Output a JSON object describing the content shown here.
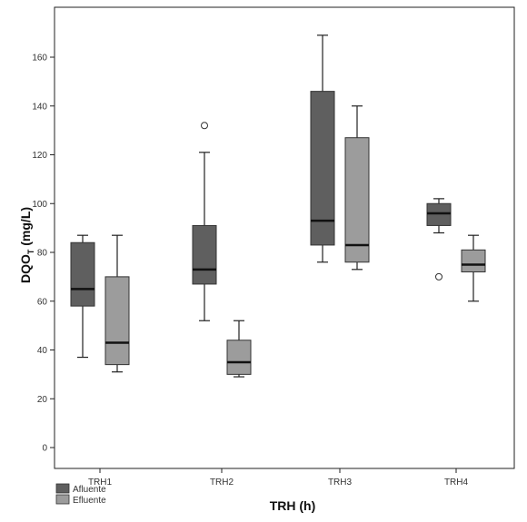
{
  "chart_data": {
    "type": "boxplot",
    "xlabel": "TRH (h)",
    "ylabel_main": "DQO",
    "ylabel_sub": "T",
    "ylabel_unit": " (mg/L)",
    "ylim": [
      -8,
      176
    ],
    "yticks": [
      0,
      20,
      40,
      60,
      80,
      100,
      120,
      140,
      160
    ],
    "grid": false,
    "legend_position": "bottom-left",
    "categories": [
      "TRH1",
      "TRH2",
      "TRH3",
      "TRH4"
    ],
    "series": [
      {
        "name": "Afluente",
        "color": "#5f5f5f",
        "boxes": [
          {
            "min": 37,
            "q1": 58,
            "median": 65,
            "q3": 84,
            "max": 87,
            "outliers": []
          },
          {
            "min": 52,
            "q1": 67,
            "median": 73,
            "q3": 91,
            "max": 121,
            "outliers": [
              132
            ]
          },
          {
            "min": 76,
            "q1": 83,
            "median": 93,
            "q3": 146,
            "max": 169,
            "outliers": []
          },
          {
            "min": 88,
            "q1": 91,
            "median": 96,
            "q3": 100,
            "max": 102,
            "outliers": [
              70
            ]
          }
        ]
      },
      {
        "name": "Efluente",
        "color": "#9c9c9c",
        "boxes": [
          {
            "min": 31,
            "q1": 34,
            "median": 43,
            "q3": 70,
            "max": 87,
            "outliers": []
          },
          {
            "min": 29,
            "q1": 30,
            "median": 35,
            "q3": 44,
            "max": 52,
            "outliers": []
          },
          {
            "min": 73,
            "q1": 76,
            "median": 83,
            "q3": 127,
            "max": 140,
            "outliers": []
          },
          {
            "min": 60,
            "q1": 72,
            "median": 75,
            "q3": 81,
            "max": 87,
            "outliers": []
          }
        ]
      }
    ]
  }
}
